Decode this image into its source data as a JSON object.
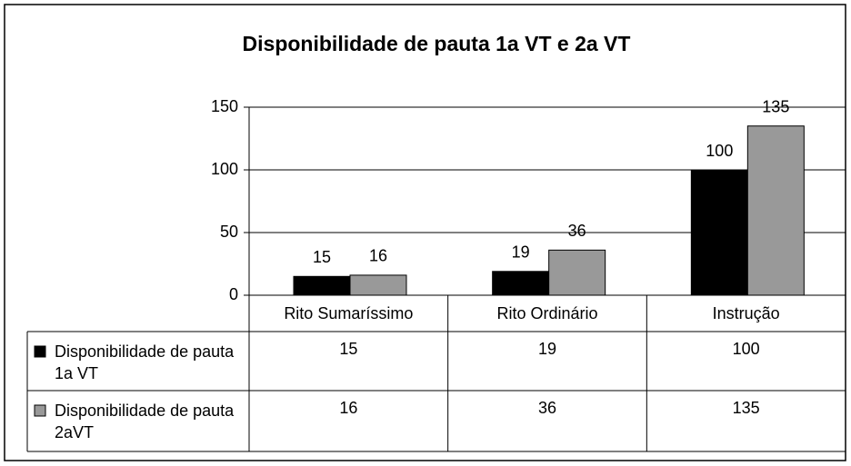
{
  "chart_data": {
    "type": "bar",
    "title": "Disponibilidade de pauta 1a VT e 2a VT",
    "categories": [
      "Rito Sumaríssimo",
      "Rito Ordinário",
      "Instrução"
    ],
    "series": [
      {
        "name": "Disponibilidade de pauta 1a VT",
        "color": "#000000",
        "values": [
          15,
          19,
          100
        ]
      },
      {
        "name": "Disponibilidade de pauta 2aVT",
        "color": "#999999",
        "values": [
          16,
          36,
          135
        ]
      }
    ],
    "ylim": [
      0,
      150
    ],
    "yticks": [
      0,
      50,
      100,
      150
    ],
    "grid": true
  }
}
